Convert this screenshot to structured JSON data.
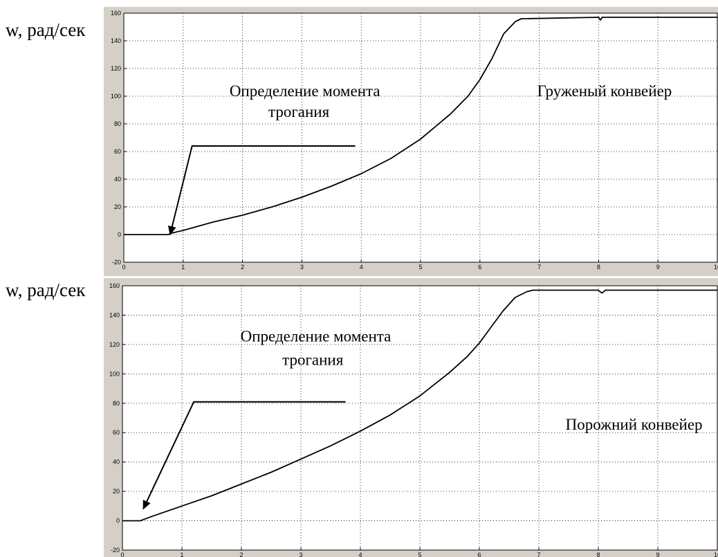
{
  "chart_data": [
    {
      "type": "line",
      "ylabel": "w, рад/сек",
      "xlim": [
        0,
        10
      ],
      "ylim": [
        -20,
        160
      ],
      "xticks": [
        0,
        1,
        2,
        3,
        4,
        5,
        6,
        7,
        8,
        9,
        10
      ],
      "yticks": [
        -20,
        0,
        20,
        40,
        60,
        80,
        100,
        120,
        140,
        160
      ],
      "grid": true,
      "series": [
        {
          "x": [
            0,
            0.75,
            0.8,
            1,
            1.5,
            2,
            2.5,
            3,
            3.5,
            4,
            4.5,
            5,
            5.5,
            5.8,
            6,
            6.2,
            6.4,
            6.6,
            6.7,
            6.75,
            8.0,
            8.03,
            8.06,
            8.12,
            10
          ],
          "y": [
            0,
            0,
            1,
            3,
            9,
            14,
            20,
            27,
            35,
            44,
            55,
            69,
            87,
            100,
            112,
            127,
            145,
            154,
            156,
            156,
            157,
            155,
            157,
            157,
            157
          ]
        }
      ],
      "annotations": [
        {
          "text": "Определение момента",
          "x": 3.05,
          "y": 100
        },
        {
          "text": "трогания",
          "x": 2.95,
          "y": 85
        },
        {
          "text": "Груженый конвейер",
          "x": 8.1,
          "y": 100
        }
      ],
      "marker_line": {
        "x": [
          3.9,
          1.15,
          0.78
        ],
        "y": [
          64,
          64,
          0
        ]
      }
    },
    {
      "type": "line",
      "ylabel": "w, рад/сек",
      "xlim": [
        0,
        10
      ],
      "ylim": [
        -20,
        160
      ],
      "xticks": [
        0,
        1,
        2,
        3,
        4,
        5,
        6,
        7,
        8,
        9,
        10
      ],
      "yticks": [
        -20,
        0,
        20,
        40,
        60,
        80,
        100,
        120,
        140,
        160
      ],
      "grid": true,
      "series": [
        {
          "x": [
            0,
            0.3,
            0.5,
            1,
            1.5,
            2,
            2.5,
            3,
            3.5,
            4,
            4.5,
            5,
            5.5,
            5.8,
            6,
            6.2,
            6.4,
            6.6,
            6.8,
            6.9,
            7.0,
            8.0,
            8.06,
            8.12,
            10
          ],
          "y": [
            0,
            0,
            3,
            10,
            17,
            25,
            33,
            42,
            51,
            61,
            72,
            85,
            101,
            112,
            121,
            132,
            143,
            152,
            156,
            157,
            157,
            157,
            155,
            157,
            157
          ]
        }
      ],
      "annotations": [
        {
          "text": "Определение момента",
          "x": 3.25,
          "y": 122
        },
        {
          "text": "трогания",
          "x": 3.2,
          "y": 106
        },
        {
          "text": "Порожний конвейер",
          "x": 8.6,
          "y": 62
        }
      ],
      "marker_line": {
        "x": [
          3.75,
          1.2,
          0.35
        ],
        "y": [
          81,
          81,
          8
        ]
      }
    }
  ]
}
